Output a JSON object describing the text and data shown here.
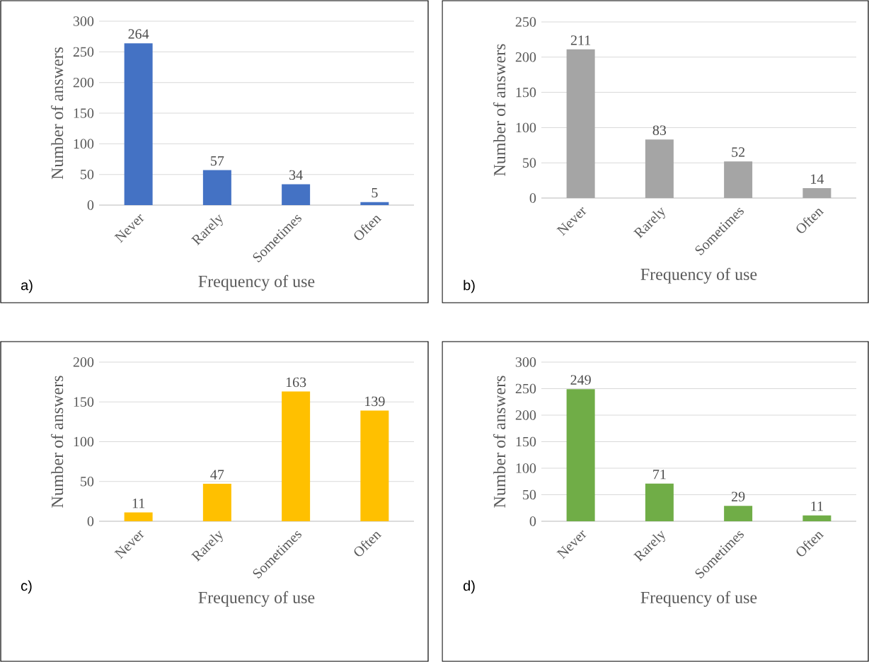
{
  "chart_data": [
    {
      "type": "bar",
      "categories": [
        "Never",
        "Rarely",
        "Sometimes",
        "Often"
      ],
      "values": [
        264,
        57,
        34,
        5
      ],
      "color": "#4472c4",
      "xlabel": "Frequency of use",
      "ylabel": "Number of answers",
      "ylim": [
        0,
        300
      ],
      "yticks": [
        0,
        50,
        100,
        150,
        200,
        250,
        300
      ],
      "grid": "y",
      "data_labels": true,
      "annotations": [
        "a)"
      ]
    },
    {
      "type": "bar",
      "categories": [
        "Never",
        "Rarely",
        "Sometimes",
        "Often"
      ],
      "values": [
        211,
        83,
        52,
        14
      ],
      "color": "#a5a5a5",
      "xlabel": "Frequency of use",
      "ylabel": "Number of answers",
      "ylim": [
        0,
        250
      ],
      "yticks": [
        0,
        50,
        100,
        150,
        200,
        250
      ],
      "grid": "y",
      "data_labels": true,
      "annotations": [
        "b)"
      ]
    },
    {
      "type": "bar",
      "categories": [
        "Never",
        "Rarely",
        "Sometimes",
        "Often"
      ],
      "values": [
        11,
        47,
        163,
        139
      ],
      "color": "#ffc000",
      "xlabel": "Frequency of use",
      "ylabel": "Number of answers",
      "ylim": [
        0,
        200
      ],
      "yticks": [
        0,
        50,
        100,
        150,
        200
      ],
      "grid": "y",
      "data_labels": true,
      "annotations": [
        "c)"
      ]
    },
    {
      "type": "bar",
      "categories": [
        "Never",
        "Rarely",
        "Sometimes",
        "Often"
      ],
      "values": [
        249,
        71,
        29,
        11
      ],
      "color": "#70ad47",
      "xlabel": "Frequency of use",
      "ylabel": "Number of answers",
      "ylim": [
        0,
        300
      ],
      "yticks": [
        0,
        50,
        100,
        150,
        200,
        250,
        300
      ],
      "grid": "y",
      "data_labels": true,
      "annotations": [
        "d)"
      ]
    }
  ]
}
